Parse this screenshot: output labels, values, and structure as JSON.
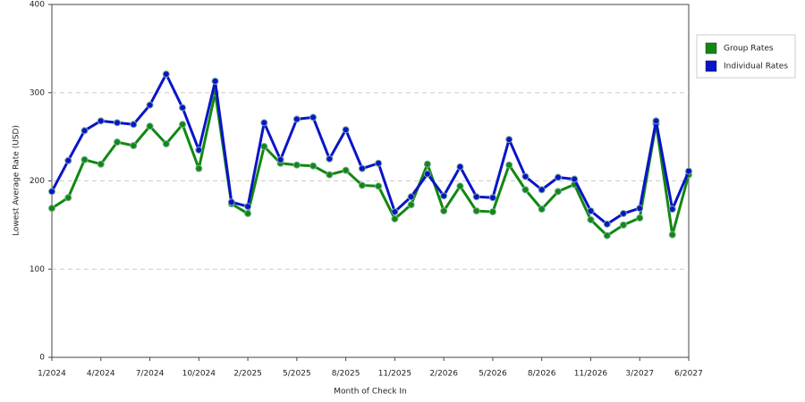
{
  "chart_data": {
    "type": "line",
    "x_label": "Month of Check In",
    "y_label": "Lowest Average Rate (USD)",
    "categories": [
      "1/2024",
      null,
      null,
      "4/2024",
      null,
      null,
      "7/2024",
      null,
      null,
      "10/2024",
      null,
      null,
      "2/2025",
      null,
      null,
      "5/2025",
      null,
      null,
      "8/2025",
      null,
      null,
      "11/2025",
      null,
      null,
      "2/2026",
      null,
      null,
      "5/2026",
      null,
      null,
      "8/2026",
      null,
      null,
      "11/2026",
      null,
      null,
      "3/2027",
      null,
      null,
      "6/2027"
    ],
    "series": [
      {
        "name": "Group Rates",
        "color": "#118811",
        "values": [
          169,
          181,
          224,
          219,
          244,
          240,
          262,
          242,
          264,
          214,
          300,
          174,
          163,
          239,
          220,
          218,
          217,
          207,
          212,
          195,
          194,
          157,
          173,
          219,
          166,
          194,
          166,
          165,
          218,
          190,
          168,
          188,
          196,
          156,
          138,
          150,
          158,
          265,
          139,
          207
        ]
      },
      {
        "name": "Individual Rates",
        "color": "#0a14c8",
        "values": [
          188,
          223,
          257,
          268,
          266,
          264,
          286,
          321,
          283,
          235,
          313,
          176,
          171,
          266,
          224,
          270,
          272,
          225,
          258,
          214,
          220,
          165,
          182,
          208,
          183,
          216,
          182,
          181,
          247,
          205,
          190,
          204,
          202,
          166,
          151,
          163,
          169,
          268,
          168,
          211
        ]
      }
    ],
    "ylim": [
      0,
      400
    ],
    "yticks": [
      0,
      100,
      200,
      300,
      400
    ],
    "grid": true,
    "legend": "right"
  }
}
